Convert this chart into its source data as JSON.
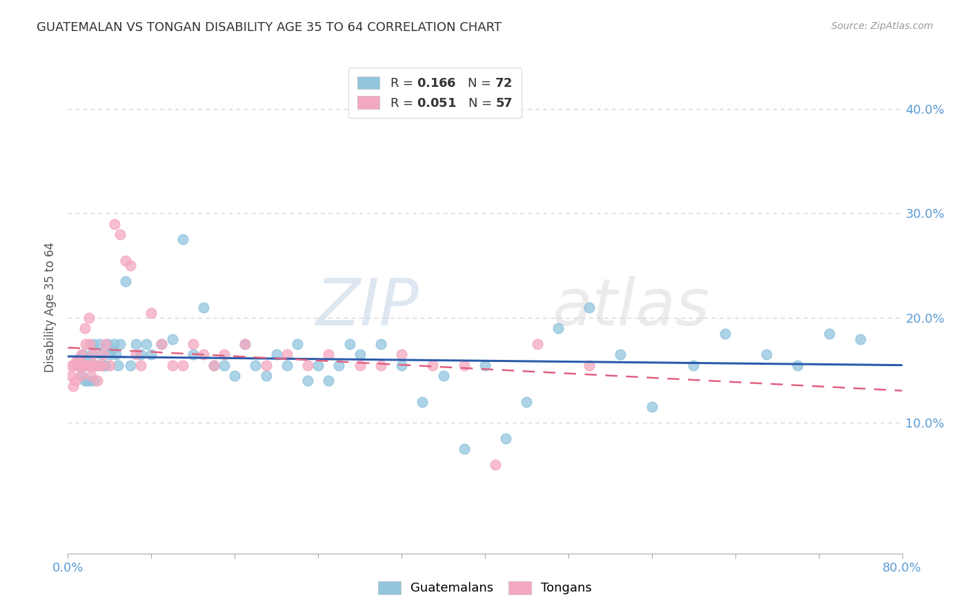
{
  "title": "GUATEMALAN VS TONGAN DISABILITY AGE 35 TO 64 CORRELATION CHART",
  "source": "Source: ZipAtlas.com",
  "ylabel": "Disability Age 35 to 64",
  "ytick_labels": [
    "10.0%",
    "20.0%",
    "30.0%",
    "40.0%"
  ],
  "ytick_values": [
    0.1,
    0.2,
    0.3,
    0.4
  ],
  "xlim": [
    0.0,
    0.8
  ],
  "ylim": [
    -0.025,
    0.445
  ],
  "guatemalan_color": "#92C5DE",
  "tongan_color": "#F4A8C0",
  "guatemalan_line_color": "#2B5BAA",
  "tongan_line_color": "#E06080",
  "background_color": "#FFFFFF",
  "watermark": "ZIPatlas",
  "guatemalan_x": [
    0.01,
    0.012,
    0.013,
    0.014,
    0.015,
    0.016,
    0.017,
    0.018,
    0.019,
    0.02,
    0.021,
    0.022,
    0.023,
    0.024,
    0.025,
    0.026,
    0.028,
    0.03,
    0.032,
    0.034,
    0.036,
    0.038,
    0.04,
    0.042,
    0.044,
    0.046,
    0.048,
    0.05,
    0.055,
    0.06,
    0.065,
    0.07,
    0.075,
    0.08,
    0.09,
    0.1,
    0.11,
    0.12,
    0.13,
    0.14,
    0.15,
    0.16,
    0.17,
    0.18,
    0.19,
    0.2,
    0.21,
    0.22,
    0.23,
    0.24,
    0.25,
    0.26,
    0.27,
    0.28,
    0.3,
    0.32,
    0.34,
    0.36,
    0.38,
    0.4,
    0.42,
    0.44,
    0.47,
    0.5,
    0.53,
    0.56,
    0.6,
    0.63,
    0.67,
    0.7,
    0.73,
    0.76
  ],
  "guatemalan_y": [
    0.155,
    0.16,
    0.145,
    0.165,
    0.155,
    0.14,
    0.16,
    0.14,
    0.155,
    0.155,
    0.14,
    0.155,
    0.165,
    0.175,
    0.14,
    0.155,
    0.155,
    0.175,
    0.165,
    0.155,
    0.155,
    0.175,
    0.165,
    0.17,
    0.175,
    0.165,
    0.155,
    0.175,
    0.235,
    0.155,
    0.175,
    0.165,
    0.175,
    0.165,
    0.175,
    0.18,
    0.275,
    0.165,
    0.21,
    0.155,
    0.155,
    0.145,
    0.175,
    0.155,
    0.145,
    0.165,
    0.155,
    0.175,
    0.14,
    0.155,
    0.14,
    0.155,
    0.175,
    0.165,
    0.175,
    0.155,
    0.12,
    0.145,
    0.075,
    0.155,
    0.085,
    0.12,
    0.19,
    0.21,
    0.165,
    0.115,
    0.155,
    0.185,
    0.165,
    0.155,
    0.185,
    0.18
  ],
  "tongan_x": [
    0.003,
    0.004,
    0.005,
    0.006,
    0.007,
    0.008,
    0.009,
    0.01,
    0.011,
    0.012,
    0.013,
    0.014,
    0.015,
    0.016,
    0.017,
    0.018,
    0.019,
    0.02,
    0.021,
    0.022,
    0.023,
    0.024,
    0.025,
    0.026,
    0.028,
    0.03,
    0.032,
    0.034,
    0.036,
    0.04,
    0.045,
    0.05,
    0.055,
    0.06,
    0.065,
    0.07,
    0.08,
    0.09,
    0.1,
    0.11,
    0.12,
    0.13,
    0.14,
    0.15,
    0.17,
    0.19,
    0.21,
    0.23,
    0.25,
    0.28,
    0.3,
    0.32,
    0.35,
    0.38,
    0.41,
    0.45,
    0.5
  ],
  "tongan_y": [
    0.145,
    0.155,
    0.135,
    0.155,
    0.14,
    0.16,
    0.155,
    0.155,
    0.16,
    0.145,
    0.165,
    0.155,
    0.155,
    0.19,
    0.175,
    0.155,
    0.155,
    0.2,
    0.175,
    0.145,
    0.155,
    0.165,
    0.155,
    0.155,
    0.14,
    0.155,
    0.155,
    0.165,
    0.175,
    0.155,
    0.29,
    0.28,
    0.255,
    0.25,
    0.165,
    0.155,
    0.205,
    0.175,
    0.155,
    0.155,
    0.175,
    0.165,
    0.155,
    0.165,
    0.175,
    0.155,
    0.165,
    0.155,
    0.165,
    0.155,
    0.155,
    0.165,
    0.155,
    0.155,
    0.06,
    0.175,
    0.155
  ]
}
